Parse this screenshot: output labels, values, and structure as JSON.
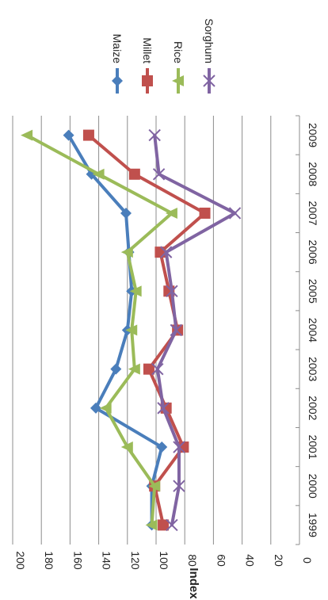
{
  "chart_data": {
    "type": "line",
    "orientation": "rotated-90-clockwise",
    "title": "",
    "xlabel": "",
    "ylabel": "Index",
    "categories": [
      "1999",
      "2000",
      "2001",
      "2002",
      "2003",
      "2004",
      "2005",
      "2006",
      "2007",
      "2008",
      "2009"
    ],
    "ylim": [
      0,
      200
    ],
    "yticks": [
      "0",
      "20",
      "40",
      "60",
      "80",
      "100",
      "120",
      "140",
      "160",
      "180",
      "200"
    ],
    "grid": true,
    "legend_position": "top",
    "series": [
      {
        "name": "Maize",
        "color": "#4a7ebb",
        "marker": "diamond",
        "values": [
          103,
          103,
          96,
          142,
          128,
          120,
          117,
          119,
          121,
          145,
          161
        ]
      },
      {
        "name": "Millet",
        "color": "#c0504d",
        "marker": "square",
        "values": [
          95,
          101,
          81,
          93,
          105,
          85,
          91,
          97,
          66,
          115,
          147
        ]
      },
      {
        "name": "Rice",
        "color": "#9bbb59",
        "marker": "triangle",
        "values": [
          103,
          101,
          120,
          135,
          115,
          117,
          114,
          120,
          89,
          140,
          190
        ]
      },
      {
        "name": "Sorghum",
        "color": "#8064a2",
        "marker": "x",
        "values": [
          89,
          84,
          84,
          95,
          99,
          86,
          89,
          93,
          45,
          98,
          101
        ]
      }
    ]
  }
}
